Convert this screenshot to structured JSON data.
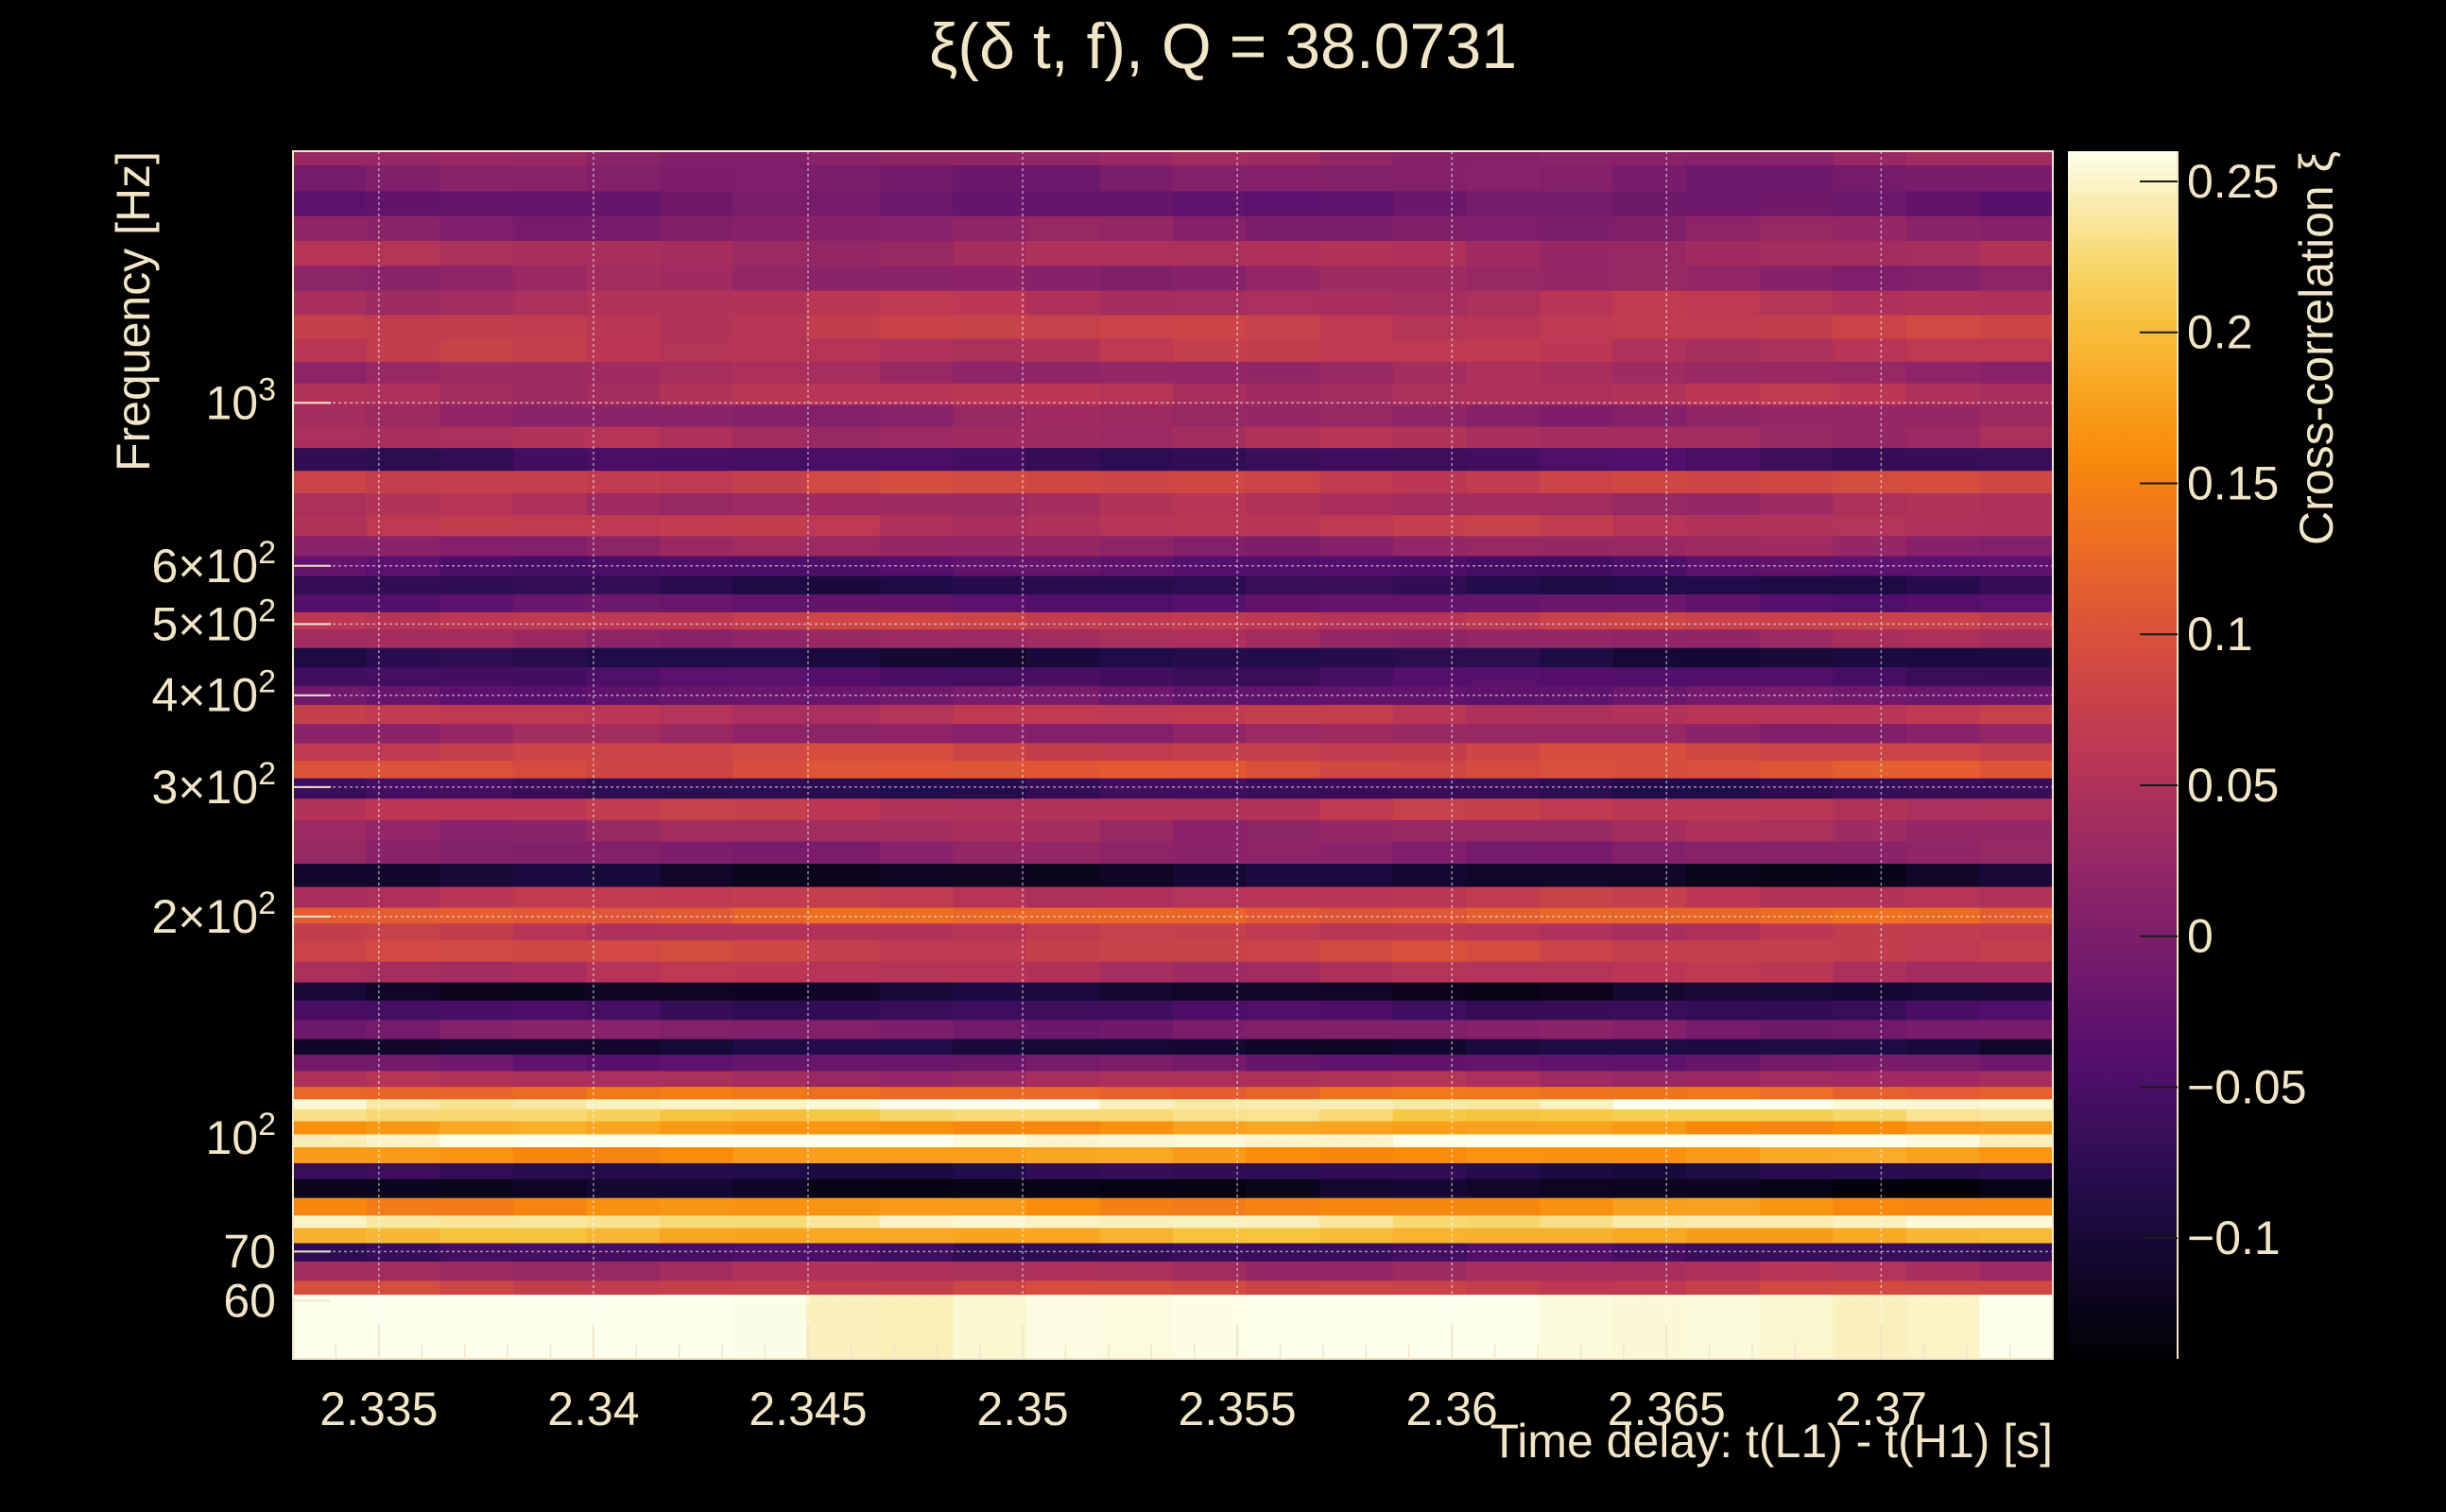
{
  "chart_data": {
    "type": "heatmap",
    "title": "ξ(δ t, f), Q = 38.0731",
    "xlabel": "Time delay: t(L1) - t(H1) [s]",
    "ylabel": "Frequency [Hz]",
    "zlabel": "Cross-correlation ξ",
    "xlim": [
      2.333,
      2.374
    ],
    "ylim": [
      50,
      2200
    ],
    "yscale": "log",
    "zlim": [
      -0.14,
      0.26
    ],
    "grid": true,
    "colormap": "inferno",
    "x_ticks": [
      {
        "value": 2.335,
        "label": "2.335"
      },
      {
        "value": 2.34,
        "label": "2.34"
      },
      {
        "value": 2.345,
        "label": "2.345"
      },
      {
        "value": 2.35,
        "label": "2.35"
      },
      {
        "value": 2.355,
        "label": "2.355"
      },
      {
        "value": 2.36,
        "label": "2.36"
      },
      {
        "value": 2.365,
        "label": "2.365"
      },
      {
        "value": 2.37,
        "label": "2.37"
      }
    ],
    "y_ticks": [
      {
        "value": 60,
        "base": "60",
        "exp": ""
      },
      {
        "value": 70,
        "base": "70",
        "exp": ""
      },
      {
        "value": 100,
        "base": "10",
        "exp": "2"
      },
      {
        "value": 200,
        "base": "2×10",
        "exp": "2"
      },
      {
        "value": 300,
        "base": "3×10",
        "exp": "2"
      },
      {
        "value": 400,
        "base": "4×10",
        "exp": "2"
      },
      {
        "value": 500,
        "base": "5×10",
        "exp": "2"
      },
      {
        "value": 600,
        "base": "6×10",
        "exp": "2"
      },
      {
        "value": 1000,
        "base": "10",
        "exp": "3"
      }
    ],
    "z_ticks": [
      {
        "value": -0.1,
        "label": "−0.1"
      },
      {
        "value": -0.05,
        "label": "−0.05"
      },
      {
        "value": 0,
        "label": "0"
      },
      {
        "value": 0.05,
        "label": "0.05"
      },
      {
        "value": 0.1,
        "label": "0.1"
      },
      {
        "value": 0.15,
        "label": "0.15"
      },
      {
        "value": 0.2,
        "label": "0.2"
      },
      {
        "value": 0.25,
        "label": "0.25"
      }
    ],
    "bands": [
      {
        "f": 60.5,
        "value": 0.26,
        "slope": 0.0
      },
      {
        "f": 62,
        "value": 0.08,
        "slope": 0.0
      },
      {
        "f": 66,
        "value": 0.04,
        "slope": 0.0
      },
      {
        "f": 70,
        "value": -0.06,
        "slope": 0.0
      },
      {
        "f": 74,
        "value": 0.19,
        "slope": 0.0
      },
      {
        "f": 77,
        "value": 0.24,
        "slope": 0.0
      },
      {
        "f": 80,
        "value": 0.16,
        "slope": 0.0
      },
      {
        "f": 86,
        "value": -0.12,
        "slope": 0.0
      },
      {
        "f": 90,
        "value": -0.08,
        "slope": 0.0
      },
      {
        "f": 95,
        "value": 0.17,
        "slope": 0.0
      },
      {
        "f": 99.5,
        "value": 0.26,
        "slope": 0.0
      },
      {
        "f": 103,
        "value": 0.17,
        "slope": 0.0
      },
      {
        "f": 108,
        "value": 0.22,
        "slope": 0.0
      },
      {
        "f": 111,
        "value": 0.25,
        "slope": 0.0
      },
      {
        "f": 115,
        "value": 0.13,
        "slope": 0.0
      },
      {
        "f": 120,
        "value": 0.04,
        "slope": 0.0
      },
      {
        "f": 127,
        "value": -0.02,
        "slope": 0.0
      },
      {
        "f": 133,
        "value": -0.1,
        "slope": 0.0
      },
      {
        "f": 140,
        "value": 0.0,
        "slope": 0.0
      },
      {
        "f": 150,
        "value": -0.06,
        "slope": 0.0
      },
      {
        "f": 158,
        "value": -0.11,
        "slope": 0.0
      },
      {
        "f": 168,
        "value": 0.05,
        "slope": 0.0
      },
      {
        "f": 180,
        "value": 0.08,
        "slope": 0.0
      },
      {
        "f": 192,
        "value": 0.06,
        "slope": 0.0
      },
      {
        "f": 200,
        "value": 0.12,
        "slope": 0.0
      },
      {
        "f": 212,
        "value": 0.06,
        "slope": 0.0
      },
      {
        "f": 228,
        "value": -0.11,
        "slope": 0.0
      },
      {
        "f": 245,
        "value": 0.01,
        "slope": 0.0
      },
      {
        "f": 262,
        "value": 0.03,
        "slope": 0.0
      },
      {
        "f": 280,
        "value": 0.06,
        "slope": 0.0
      },
      {
        "f": 300,
        "value": -0.07,
        "slope": 0.0
      },
      {
        "f": 318,
        "value": 0.1,
        "slope": 0.0
      },
      {
        "f": 335,
        "value": 0.08,
        "slope": 0.0
      },
      {
        "f": 355,
        "value": 0.02,
        "slope": 0.0
      },
      {
        "f": 378,
        "value": 0.06,
        "slope": 0.0
      },
      {
        "f": 400,
        "value": -0.02,
        "slope": 0.0
      },
      {
        "f": 425,
        "value": -0.05,
        "slope": 0.0
      },
      {
        "f": 450,
        "value": -0.09,
        "slope": 0.0
      },
      {
        "f": 480,
        "value": 0.03,
        "slope": 0.0
      },
      {
        "f": 505,
        "value": 0.07,
        "slope": 0.0
      },
      {
        "f": 535,
        "value": -0.03,
        "slope": 0.0
      },
      {
        "f": 565,
        "value": -0.08,
        "slope": 0.0
      },
      {
        "f": 600,
        "value": -0.04,
        "slope": 0.0
      },
      {
        "f": 640,
        "value": 0.02,
        "slope": 0.0
      },
      {
        "f": 680,
        "value": 0.06,
        "slope": 0.0
      },
      {
        "f": 730,
        "value": 0.04,
        "slope": 0.0
      },
      {
        "f": 780,
        "value": 0.08,
        "slope": 0.0
      },
      {
        "f": 840,
        "value": -0.06,
        "slope": 0.0
      },
      {
        "f": 900,
        "value": 0.04,
        "slope": 0.0
      },
      {
        "f": 960,
        "value": 0.02,
        "slope": 0.0
      },
      {
        "f": 1030,
        "value": 0.05,
        "slope": 0.0
      },
      {
        "f": 1100,
        "value": 0.03,
        "slope": 0.0
      },
      {
        "f": 1180,
        "value": 0.06,
        "slope": 0.0
      },
      {
        "f": 1270,
        "value": 0.07,
        "slope": 0.0
      },
      {
        "f": 1370,
        "value": 0.05,
        "slope": 0.0
      },
      {
        "f": 1480,
        "value": 0.02,
        "slope": 0.0
      },
      {
        "f": 1600,
        "value": 0.04,
        "slope": 0.0
      },
      {
        "f": 1730,
        "value": 0.01,
        "slope": 0.0
      },
      {
        "f": 1870,
        "value": -0.02,
        "slope": 0.0
      },
      {
        "f": 2020,
        "value": 0.0,
        "slope": 0.0
      },
      {
        "f": 2200,
        "value": 0.02,
        "slope": 0.0
      }
    ]
  }
}
